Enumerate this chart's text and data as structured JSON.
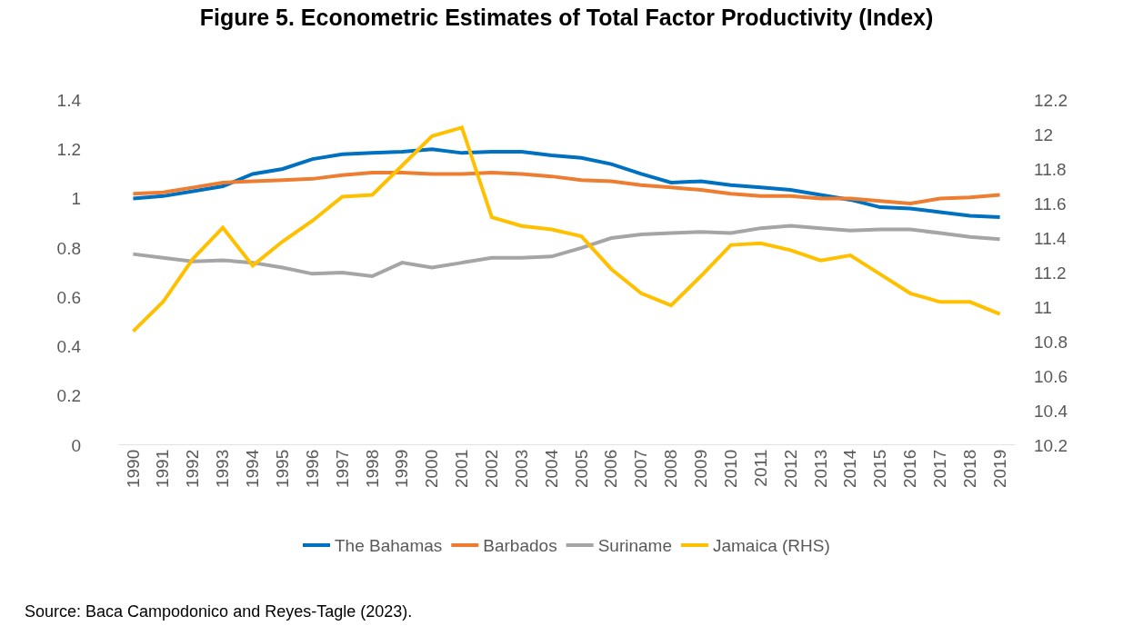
{
  "chart_data": {
    "type": "line",
    "title": "Figure 5. Econometric Estimates of Total Factor Productivity (Index)",
    "annotations": [
      "Source: Baca Campodonico and Reyes-Tagle (2023)."
    ],
    "categories": [
      "1990",
      "1991",
      "1992",
      "1993",
      "1994",
      "1995",
      "1996",
      "1997",
      "1998",
      "1999",
      "2000",
      "2001",
      "2002",
      "2003",
      "2004",
      "2005",
      "2006",
      "2007",
      "2008",
      "2009",
      "2010",
      "2011",
      "2012",
      "2013",
      "2014",
      "2015",
      "2016",
      "2017",
      "2018",
      "2019"
    ],
    "series": [
      {
        "name": "The Bahamas",
        "color": "#0070c0",
        "values": [
          1.0,
          1.01,
          1.03,
          1.05,
          1.1,
          1.12,
          1.16,
          1.18,
          1.185,
          1.19,
          1.2,
          1.185,
          1.19,
          1.19,
          1.175,
          1.165,
          1.14,
          1.1,
          1.065,
          1.07,
          1.055,
          1.045,
          1.035,
          1.015,
          0.995,
          0.965,
          0.96,
          0.945,
          0.93,
          0.925
        ]
      },
      {
        "name": "Barbados",
        "color": "#ed7d31",
        "values": [
          1.02,
          1.025,
          1.045,
          1.065,
          1.07,
          1.075,
          1.08,
          1.095,
          1.105,
          1.105,
          1.1,
          1.1,
          1.105,
          1.1,
          1.09,
          1.075,
          1.07,
          1.055,
          1.045,
          1.035,
          1.02,
          1.01,
          1.01,
          1.0,
          1.0,
          0.99,
          0.98,
          1.0,
          1.005,
          1.015
        ]
      },
      {
        "name": "Suriname",
        "color": "#a5a5a5",
        "values": [
          0.775,
          0.76,
          0.745,
          0.75,
          0.74,
          0.72,
          0.695,
          0.7,
          0.685,
          0.74,
          0.72,
          0.74,
          0.76,
          0.76,
          0.765,
          0.8,
          0.84,
          0.855,
          0.86,
          0.865,
          0.86,
          0.88,
          0.89,
          0.88,
          0.87,
          0.875,
          0.875,
          0.86,
          0.845,
          0.835
        ]
      },
      {
        "name": "Jamaica (RHS)",
        "color": "#ffc000",
        "axis": "y2",
        "values": [
          10.86,
          11.03,
          11.28,
          11.46,
          11.24,
          11.38,
          11.5,
          11.64,
          11.65,
          11.82,
          11.99,
          12.04,
          11.52,
          11.47,
          11.45,
          11.41,
          11.22,
          11.08,
          11.01,
          11.18,
          11.36,
          11.37,
          11.33,
          11.27,
          11.3,
          11.19,
          11.08,
          11.03,
          11.03,
          10.96
        ]
      }
    ],
    "ylim": [
      0,
      1.4
    ],
    "yticks": [
      0,
      0.2,
      0.4,
      0.6,
      0.8,
      1,
      1.2,
      1.4
    ],
    "y2lim": [
      10.2,
      12.2
    ],
    "y2ticks": [
      10.2,
      10.4,
      10.6,
      10.8,
      11,
      11.2,
      11.4,
      11.6,
      11.8,
      12,
      12.2
    ],
    "grid": false,
    "legend": "bottom",
    "marker": "none",
    "line_style": "solid"
  }
}
